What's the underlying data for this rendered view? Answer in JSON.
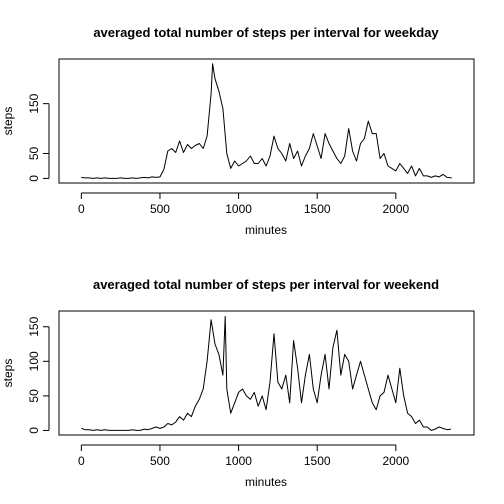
{
  "chart_data": [
    {
      "type": "line",
      "title": "averaged total number of steps per interval for weekday",
      "xlabel": "minutes",
      "ylabel": "steps",
      "xlim": [
        -142,
        2497
      ],
      "ylim": [
        -9.2,
        239.6
      ],
      "xticks": [
        0,
        500,
        1000,
        1500,
        2000
      ],
      "yticks": [
        0,
        50,
        150
      ],
      "grid": false,
      "legend": "none",
      "series": [
        {
          "x": [
            0,
            25,
            50,
            75,
            100,
            125,
            150,
            175,
            200,
            225,
            250,
            275,
            300,
            325,
            350,
            375,
            400,
            425,
            450,
            475,
            500,
            525,
            550,
            575,
            600,
            625,
            650,
            675,
            700,
            725,
            750,
            775,
            800,
            825,
            835,
            850,
            875,
            900,
            925,
            950,
            975,
            1000,
            1025,
            1050,
            1075,
            1100,
            1125,
            1150,
            1175,
            1200,
            1225,
            1250,
            1275,
            1300,
            1325,
            1350,
            1375,
            1400,
            1425,
            1450,
            1475,
            1500,
            1525,
            1550,
            1575,
            1600,
            1625,
            1650,
            1675,
            1700,
            1725,
            1750,
            1775,
            1800,
            1825,
            1850,
            1875,
            1900,
            1925,
            1950,
            1975,
            2000,
            2025,
            2050,
            2075,
            2100,
            2125,
            2150,
            2175,
            2200,
            2225,
            2250,
            2275,
            2300,
            2325,
            2355
          ],
          "values": [
            2,
            1,
            1,
            0,
            1,
            0,
            1,
            0,
            0,
            0,
            1,
            0,
            0,
            1,
            0,
            1,
            2,
            1,
            3,
            2,
            3,
            18,
            55,
            60,
            52,
            75,
            52,
            68,
            60,
            66,
            70,
            60,
            85,
            170,
            230,
            200,
            175,
            140,
            50,
            20,
            35,
            25,
            30,
            35,
            45,
            30,
            30,
            40,
            25,
            45,
            85,
            60,
            50,
            35,
            70,
            40,
            55,
            25,
            45,
            60,
            90,
            65,
            40,
            90,
            70,
            55,
            40,
            30,
            45,
            100,
            55,
            35,
            70,
            80,
            115,
            90,
            90,
            40,
            50,
            25,
            20,
            15,
            30,
            20,
            10,
            25,
            5,
            20,
            5,
            5,
            2,
            5,
            3,
            8,
            2,
            1
          ]
        }
      ]
    },
    {
      "type": "line",
      "title": "averaged total number of steps per interval for weekend",
      "xlabel": "minutes",
      "ylabel": "steps",
      "xlim": [
        -142,
        2497
      ],
      "ylim": [
        -6.6,
        172.8
      ],
      "xticks": [
        0,
        500,
        1000,
        1500,
        2000
      ],
      "yticks": [
        0,
        50,
        100,
        150
      ],
      "grid": false,
      "legend": "none",
      "series": [
        {
          "x": [
            0,
            25,
            50,
            75,
            100,
            125,
            150,
            175,
            200,
            225,
            250,
            275,
            300,
            325,
            350,
            375,
            400,
            425,
            450,
            475,
            500,
            525,
            550,
            575,
            600,
            625,
            650,
            675,
            700,
            725,
            750,
            775,
            800,
            825,
            850,
            875,
            900,
            915,
            925,
            950,
            975,
            1000,
            1025,
            1050,
            1075,
            1100,
            1125,
            1150,
            1175,
            1200,
            1225,
            1250,
            1275,
            1300,
            1325,
            1350,
            1375,
            1400,
            1425,
            1450,
            1475,
            1500,
            1525,
            1550,
            1575,
            1600,
            1625,
            1650,
            1675,
            1700,
            1725,
            1750,
            1775,
            1800,
            1825,
            1850,
            1875,
            1900,
            1925,
            1950,
            1975,
            2000,
            2025,
            2050,
            2075,
            2100,
            2125,
            2150,
            2175,
            2200,
            2225,
            2250,
            2275,
            2300,
            2325,
            2350
          ],
          "values": [
            3,
            1,
            1,
            0,
            1,
            0,
            1,
            0,
            0,
            0,
            0,
            0,
            0,
            1,
            0,
            0,
            2,
            1,
            3,
            5,
            3,
            5,
            10,
            8,
            12,
            20,
            15,
            25,
            20,
            35,
            45,
            60,
            100,
            160,
            125,
            110,
            80,
            165,
            60,
            25,
            40,
            55,
            60,
            50,
            45,
            55,
            35,
            50,
            30,
            70,
            140,
            70,
            60,
            80,
            40,
            130,
            90,
            40,
            80,
            110,
            60,
            40,
            80,
            110,
            60,
            120,
            145,
            80,
            110,
            100,
            60,
            80,
            100,
            80,
            60,
            40,
            30,
            50,
            55,
            80,
            60,
            40,
            90,
            50,
            25,
            20,
            10,
            15,
            5,
            5,
            0,
            2,
            5,
            3,
            1,
            2
          ]
        }
      ]
    }
  ]
}
